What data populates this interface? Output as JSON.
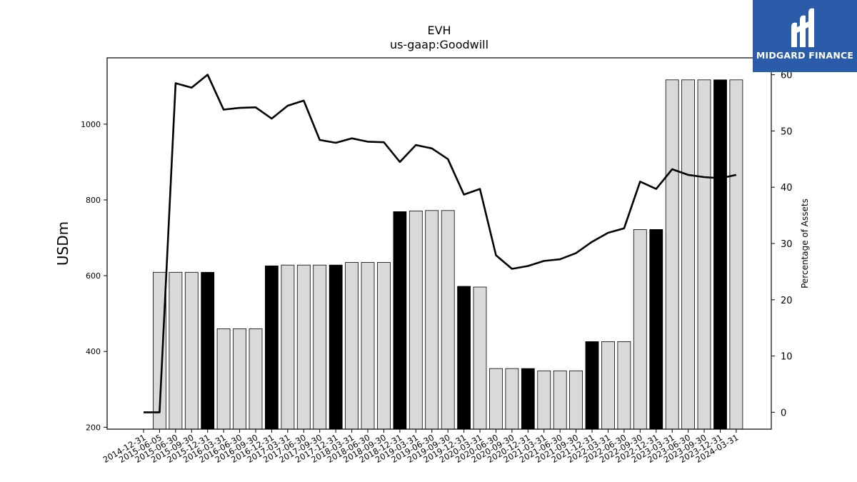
{
  "chart_data": {
    "type": "bar",
    "title": "EVH",
    "subtitle": "us-gaap:Goodwill",
    "ylabel": "USDm",
    "y2label": "Percentage of Assets",
    "ylim": [
      195,
      1175
    ],
    "y2lim": [
      -3,
      63
    ],
    "yticks": [
      200,
      400,
      600,
      800,
      1000
    ],
    "y2ticks": [
      0,
      10,
      20,
      30,
      40,
      50,
      60
    ],
    "categories": [
      "2014-12-31",
      "2015-06-05",
      "2015-06-30",
      "2015-09-30",
      "2015-12-31",
      "2016-03-31",
      "2016-06-30",
      "2016-09-30",
      "2016-12-31",
      "2017-03-31",
      "2017-06-30",
      "2017-09-30",
      "2017-12-31",
      "2018-03-31",
      "2018-06-30",
      "2018-09-30",
      "2018-12-31",
      "2019-03-31",
      "2019-06-30",
      "2019-09-30",
      "2019-12-31",
      "2020-03-31",
      "2020-06-30",
      "2020-09-30",
      "2020-12-31",
      "2021-03-31",
      "2021-06-30",
      "2021-09-30",
      "2021-12-31",
      "2022-03-31",
      "2022-06-30",
      "2022-09-30",
      "2022-12-31",
      "2023-03-31",
      "2023-06-30",
      "2023-09-30",
      "2023-12-31",
      "2024-03-31"
    ],
    "series": [
      {
        "kind": "bar",
        "values": [
          null,
          609,
          609,
          609,
          609,
          460,
          460,
          460,
          626,
          628,
          628,
          628,
          628,
          635,
          635,
          635,
          769,
          771,
          772,
          772,
          572,
          570,
          355,
          355,
          355,
          349,
          349,
          349,
          426,
          426,
          426,
          722,
          722,
          1117,
          1117,
          1117,
          1117,
          1117
        ],
        "highlight": [
          false,
          false,
          false,
          false,
          true,
          false,
          false,
          false,
          true,
          false,
          false,
          false,
          true,
          false,
          false,
          false,
          true,
          false,
          false,
          false,
          true,
          false,
          false,
          false,
          true,
          false,
          false,
          false,
          true,
          false,
          false,
          false,
          true,
          false,
          false,
          false,
          true,
          false
        ]
      },
      {
        "kind": "line",
        "axis": "right",
        "values": [
          0,
          0,
          58.5,
          57.7,
          60,
          53.8,
          54.1,
          54.2,
          52.2,
          54.5,
          55.4,
          48.4,
          47.9,
          48.7,
          48.1,
          48.0,
          44.5,
          47.5,
          46.9,
          45.0,
          38.7,
          39.7,
          27.9,
          25.5,
          26.0,
          26.9,
          27.2,
          28.3,
          30.3,
          31.9,
          32.7,
          41.0,
          39.7,
          43.2,
          42.2,
          41.8,
          41.6,
          42.2
        ]
      }
    ],
    "colors": {
      "bar": "#d9d9d9",
      "bar_highlight": "#000000",
      "line": "#000000"
    },
    "grid": false
  },
  "logo": {
    "text": "MIDGARD FINANCE",
    "color": "#2a5caa"
  }
}
